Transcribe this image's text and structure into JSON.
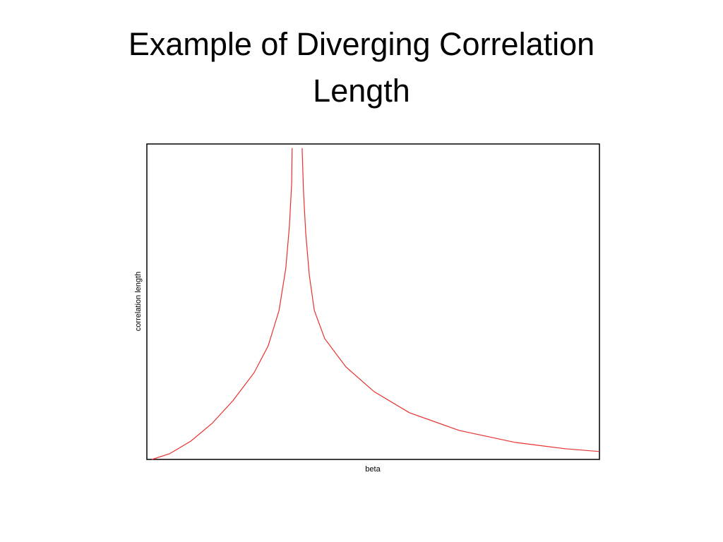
{
  "chart_data": {
    "type": "line",
    "title": "Example of Diverging Correlation Length",
    "x_label": "beta",
    "y_label": "correlation length",
    "xlim": [
      0,
      1
    ],
    "ylim": [
      0,
      1
    ],
    "x": [
      0.011,
      0.05,
      0.097,
      0.144,
      0.19,
      0.237,
      0.268,
      0.292,
      0.307,
      0.315,
      0.32,
      0.321,
      0.332,
      0.343,
      0.346,
      0.351,
      0.359,
      0.37,
      0.393,
      0.44,
      0.502,
      0.58,
      0.69,
      0.814,
      0.924,
      1.0
    ],
    "series": [
      {
        "color": "#e8312f",
        "values": [
          0,
          0.018,
          0.058,
          0.114,
          0.186,
          0.275,
          0.36,
          0.472,
          0.606,
          0.74,
          0.875,
          0.987,
          null,
          0.987,
          0.852,
          0.718,
          0.584,
          0.472,
          0.383,
          0.293,
          0.215,
          0.148,
          0.092,
          0.054,
          0.034,
          0.025
        ]
      }
    ]
  }
}
